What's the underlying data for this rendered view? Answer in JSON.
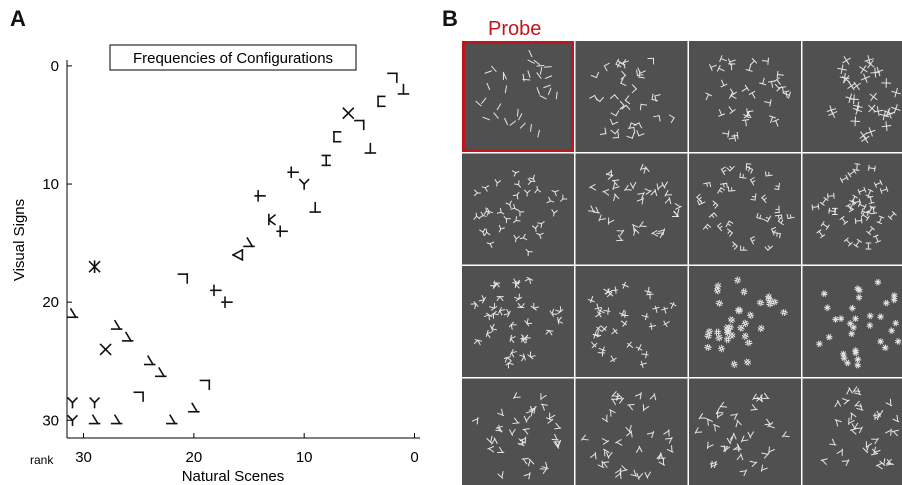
{
  "figure": {
    "panel_a_letter": "A",
    "panel_b_letter": "B",
    "probe_label": "Probe",
    "colors": {
      "probe_border": "#c0161c",
      "tile_background": "#505050",
      "tile_glyph": "#e6e6e6",
      "marker": "#111111"
    }
  },
  "chart_data": {
    "type": "scatter",
    "title": "Frequencies of Configurations",
    "xlabel": "Natural Scenes",
    "ylabel": "Visual Signs",
    "x_rank_label": "rank",
    "xlim": [
      31.5,
      -0.5
    ],
    "ylim": [
      31.5,
      -0.5
    ],
    "x_inverted": true,
    "y_inverted": true,
    "xticks": [
      30,
      20,
      10,
      0
    ],
    "yticks": [
      0,
      10,
      20,
      30
    ],
    "grid": false,
    "points": [
      {
        "x": 2,
        "y": 1,
        "glyph": "corner"
      },
      {
        "x": 1,
        "y": 2,
        "glyph": "tee"
      },
      {
        "x": 3,
        "y": 3,
        "glyph": "bracket"
      },
      {
        "x": 6,
        "y": 4,
        "glyph": "cross"
      },
      {
        "x": 5,
        "y": 5,
        "glyph": "corner"
      },
      {
        "x": 7,
        "y": 6,
        "glyph": "bracket"
      },
      {
        "x": 4,
        "y": 7,
        "glyph": "tee"
      },
      {
        "x": 8,
        "y": 8,
        "glyph": "ibeam"
      },
      {
        "x": 11,
        "y": 9,
        "glyph": "plus"
      },
      {
        "x": 10,
        "y": 10,
        "glyph": "fork"
      },
      {
        "x": 14,
        "y": 11,
        "glyph": "plus"
      },
      {
        "x": 9,
        "y": 12,
        "glyph": "tee"
      },
      {
        "x": 13,
        "y": 13,
        "glyph": "kay"
      },
      {
        "x": 12,
        "y": 14,
        "glyph": "plus"
      },
      {
        "x": 15,
        "y": 15,
        "glyph": "arrow"
      },
      {
        "x": 16,
        "y": 16,
        "glyph": "triangle"
      },
      {
        "x": 29,
        "y": 17,
        "glyph": "asterisk"
      },
      {
        "x": 21,
        "y": 18,
        "glyph": "corner"
      },
      {
        "x": 18,
        "y": 19,
        "glyph": "plus"
      },
      {
        "x": 17,
        "y": 20,
        "glyph": "plus"
      },
      {
        "x": 31,
        "y": 21,
        "glyph": "arrow"
      },
      {
        "x": 27,
        "y": 22,
        "glyph": "arrow"
      },
      {
        "x": 26,
        "y": 23,
        "glyph": "arrow"
      },
      {
        "x": 28,
        "y": 24,
        "glyph": "cross"
      },
      {
        "x": 24,
        "y": 25,
        "glyph": "arrow"
      },
      {
        "x": 23,
        "y": 26,
        "glyph": "arrow"
      },
      {
        "x": 19,
        "y": 27,
        "glyph": "corner"
      },
      {
        "x": 25,
        "y": 28,
        "glyph": "corner"
      },
      {
        "x": 31,
        "y": 28.5,
        "glyph": "fork"
      },
      {
        "x": 29,
        "y": 28.5,
        "glyph": "fork"
      },
      {
        "x": 20,
        "y": 29,
        "glyph": "arrow"
      },
      {
        "x": 31,
        "y": 30,
        "glyph": "fork"
      },
      {
        "x": 29,
        "y": 30,
        "glyph": "arrow"
      },
      {
        "x": 27,
        "y": 30,
        "glyph": "arrow"
      },
      {
        "x": 22,
        "y": 30,
        "glyph": "arrow"
      }
    ]
  },
  "texture_grid": {
    "rows": 4,
    "cols": 4,
    "probe_tile": [
      0,
      0
    ],
    "tiles": [
      [
        "line",
        "corner",
        "tee",
        "cross"
      ],
      [
        "fork",
        "arrow",
        "eff",
        "ibeam"
      ],
      [
        "kay",
        "plus",
        "hash",
        "star"
      ],
      [
        "arrow",
        "arrow",
        "arrow",
        "arrow"
      ]
    ]
  }
}
